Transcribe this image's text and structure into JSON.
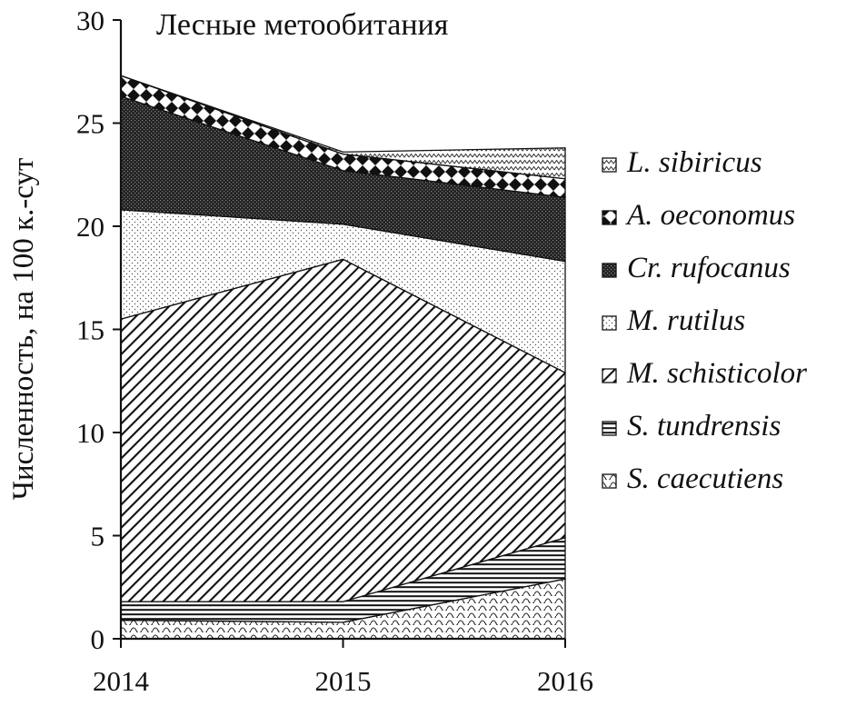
{
  "chart_data": {
    "type": "area",
    "stacked": true,
    "title": "Лесные метообитания",
    "ylabel": "Численность, на 100 к.-сут",
    "xlabel": "",
    "x": [
      "2014",
      "2015",
      "2016"
    ],
    "ylim": [
      0,
      30
    ],
    "yticks": [
      "0",
      "5",
      "10",
      "15",
      "20",
      "25",
      "30"
    ],
    "grid": false,
    "legend_position": "right",
    "series": [
      {
        "name": "S. caecutiens",
        "pattern": "wave",
        "values": [
          0.9,
          0.8,
          2.9
        ]
      },
      {
        "name": "S. tundrensis",
        "pattern": "hlines",
        "values": [
          0.9,
          1.0,
          2.0
        ]
      },
      {
        "name": "M. schisticolor",
        "pattern": "diagonal",
        "values": [
          13.7,
          16.6,
          8.0
        ]
      },
      {
        "name": "M. rutilus",
        "pattern": "dots",
        "values": [
          5.3,
          1.7,
          5.4
        ]
      },
      {
        "name": "Cr. rufocanus",
        "pattern": "dense",
        "values": [
          5.5,
          2.6,
          3.1
        ]
      },
      {
        "name": "A. oeconomus",
        "pattern": "diamonds",
        "values": [
          1.0,
          0.8,
          0.9
        ]
      },
      {
        "name": "L. sibiricus",
        "pattern": "zigzag",
        "values": [
          0.0,
          0.1,
          1.5
        ]
      }
    ]
  }
}
